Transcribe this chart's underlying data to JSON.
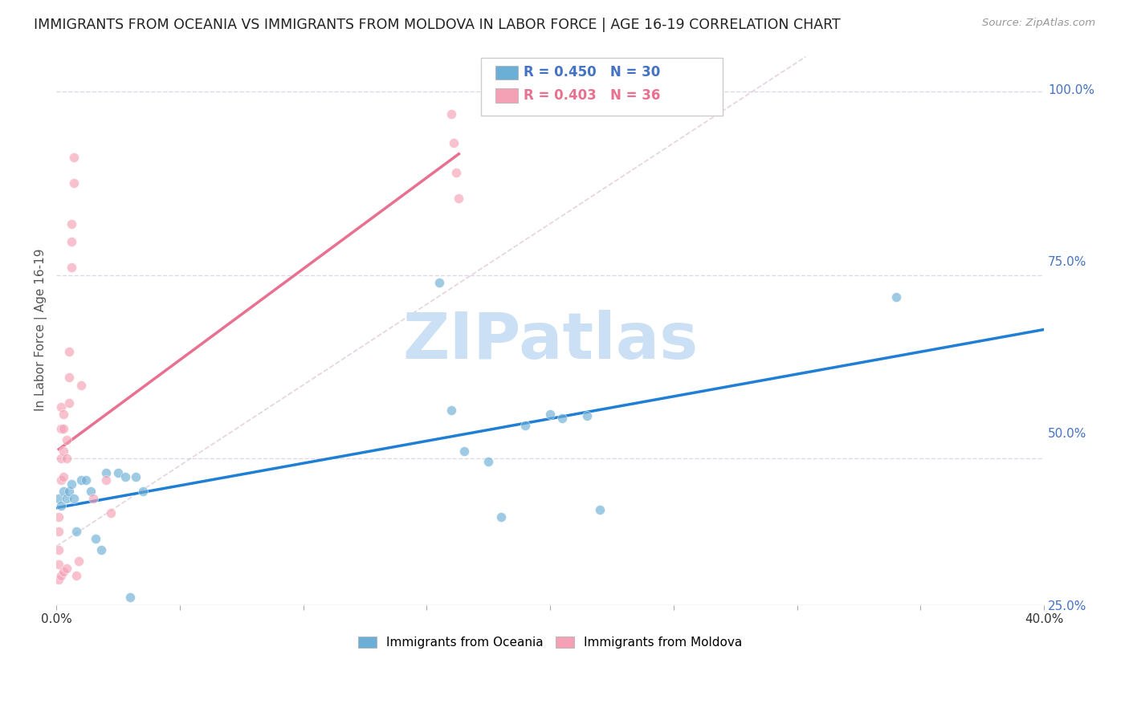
{
  "title": "IMMIGRANTS FROM OCEANIA VS IMMIGRANTS FROM MOLDOVA IN LABOR FORCE | AGE 16-19 CORRELATION CHART",
  "source": "Source: ZipAtlas.com",
  "ylabel_label": "In Labor Force | Age 16-19",
  "xlim": [
    0.0,
    0.4
  ],
  "ylim": [
    0.3,
    1.05
  ],
  "xtick_positions": [
    0.0,
    0.05,
    0.1,
    0.15,
    0.2,
    0.25,
    0.3,
    0.35,
    0.4
  ],
  "xtick_labels": [
    "0.0%",
    "",
    "",
    "",
    "",
    "",
    "",
    "",
    "40.0%"
  ],
  "ytick_positions": [
    0.25,
    0.5,
    0.75,
    1.0
  ],
  "ytick_labels": [
    "25.0%",
    "50.0%",
    "75.0%",
    "100.0%"
  ],
  "oceania_R": 0.45,
  "oceania_N": 30,
  "moldova_R": 0.403,
  "moldova_N": 36,
  "oceania_color": "#6baed6",
  "moldova_color": "#f4a0b5",
  "trendline_oceania_color": "#1f7fd4",
  "trendline_moldova_color": "#e87090",
  "dashed_line_color": "#e0c8d8",
  "background_color": "#ffffff",
  "grid_color": "#ddd8e8",
  "title_color": "#222222",
  "right_tick_color": "#4472c4",
  "watermark_color": "#cce0f5",
  "legend_color_oceania": "#4472c4",
  "legend_color_moldova": "#e87090",
  "oceania_x": [
    0.001,
    0.002,
    0.003,
    0.004,
    0.005,
    0.006,
    0.007,
    0.008,
    0.01,
    0.012,
    0.014,
    0.016,
    0.018,
    0.02,
    0.025,
    0.028,
    0.03,
    0.032,
    0.035,
    0.155,
    0.16,
    0.165,
    0.175,
    0.18,
    0.19,
    0.2,
    0.205,
    0.215,
    0.22,
    0.34
  ],
  "oceania_y": [
    0.445,
    0.435,
    0.455,
    0.445,
    0.455,
    0.465,
    0.445,
    0.4,
    0.47,
    0.47,
    0.455,
    0.39,
    0.375,
    0.48,
    0.48,
    0.475,
    0.31,
    0.475,
    0.455,
    0.74,
    0.565,
    0.51,
    0.495,
    0.42,
    0.545,
    0.56,
    0.555,
    0.558,
    0.43,
    0.72
  ],
  "moldova_x": [
    0.001,
    0.001,
    0.001,
    0.001,
    0.001,
    0.002,
    0.002,
    0.002,
    0.002,
    0.003,
    0.003,
    0.003,
    0.003,
    0.004,
    0.004,
    0.005,
    0.005,
    0.005,
    0.006,
    0.006,
    0.006,
    0.007,
    0.007,
    0.008,
    0.009,
    0.01,
    0.015,
    0.02,
    0.022,
    0.16,
    0.161,
    0.162,
    0.163,
    0.002,
    0.003,
    0.004
  ],
  "moldova_y": [
    0.42,
    0.4,
    0.375,
    0.355,
    0.335,
    0.57,
    0.54,
    0.5,
    0.47,
    0.56,
    0.54,
    0.51,
    0.475,
    0.525,
    0.5,
    0.645,
    0.61,
    0.575,
    0.82,
    0.795,
    0.76,
    0.91,
    0.875,
    0.34,
    0.36,
    0.6,
    0.445,
    0.47,
    0.425,
    0.97,
    0.93,
    0.89,
    0.855,
    0.34,
    0.345,
    0.35
  ],
  "marker_size": 75,
  "marker_alpha": 0.65,
  "marker_linewidth": 0.5,
  "marker_edgecolor": "#ffffff"
}
